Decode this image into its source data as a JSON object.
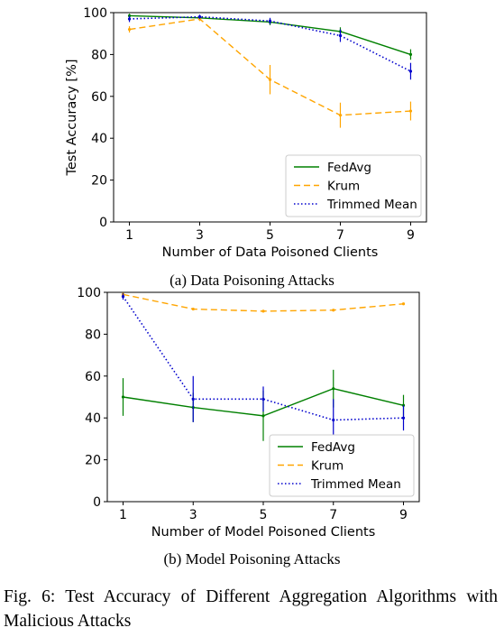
{
  "chart_data": [
    {
      "type": "line",
      "xlabel": "Number of Data Poisoned Clients",
      "ylabel": "Test Accuracy [%]",
      "x": [
        1,
        3,
        5,
        7,
        9
      ],
      "xticks": [
        "1",
        "3",
        "5",
        "7",
        "9"
      ],
      "ylim": [
        0,
        100
      ],
      "yticks": [
        "0",
        "20",
        "40",
        "60",
        "80",
        "100"
      ],
      "legend_position": "lower-right",
      "grid": false,
      "series": [
        {
          "name": "FedAvg",
          "color": "#008000",
          "style": "solid",
          "values": [
            98.5,
            97.5,
            95.5,
            91,
            80
          ],
          "errors": [
            1,
            1,
            1.5,
            2,
            2.5
          ]
        },
        {
          "name": "Krum",
          "color": "#ffa500",
          "style": "dashed",
          "values": [
            92,
            97,
            68,
            51,
            53
          ],
          "errors": [
            1.5,
            1,
            7,
            6,
            4.5
          ]
        },
        {
          "name": "Trimmed Mean",
          "color": "#0000cd",
          "style": "dotted",
          "values": [
            97,
            98,
            96,
            89,
            72
          ],
          "errors": [
            1.5,
            1,
            1.5,
            3,
            4
          ]
        }
      ]
    },
    {
      "type": "line",
      "xlabel": "Number of Model Poisoned Clients",
      "ylabel": "",
      "x": [
        1,
        3,
        5,
        7,
        9
      ],
      "xticks": [
        "1",
        "3",
        "5",
        "7",
        "9"
      ],
      "ylim": [
        0,
        100
      ],
      "yticks": [
        "0",
        "20",
        "40",
        "60",
        "80",
        "100"
      ],
      "legend_position": "lower-right",
      "grid": false,
      "series": [
        {
          "name": "FedAvg",
          "color": "#008000",
          "style": "solid",
          "values": [
            50,
            45,
            41,
            54,
            46
          ],
          "errors": [
            9,
            7,
            12,
            9,
            5
          ]
        },
        {
          "name": "Krum",
          "color": "#ffa500",
          "style": "dashed",
          "values": [
            99,
            92,
            91,
            91.5,
            94.5
          ],
          "errors": [
            0.8,
            0.5,
            0.5,
            0.5,
            0.5
          ]
        },
        {
          "name": "Trimmed Mean",
          "color": "#0000cd",
          "style": "dotted",
          "values": [
            98,
            49,
            49,
            39,
            40
          ],
          "errors": [
            1.5,
            11,
            6,
            10,
            6
          ]
        }
      ]
    }
  ],
  "subcaptions": [
    "(a) Data Poisoning Attacks",
    "(b) Model Poisoning Attacks"
  ],
  "caption": "Fig. 6: Test Accuracy of Different Aggregation Algorithms with Malicious Attacks"
}
